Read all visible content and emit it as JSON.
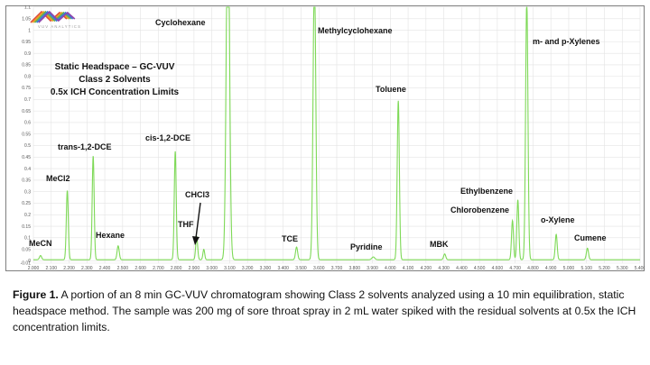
{
  "logo": {
    "text": "VUV ANALYTICS",
    "wave_colors": [
      "#e04a3a",
      "#f0a020",
      "#6ab04c",
      "#3a7bd5",
      "#8e44ad"
    ]
  },
  "chart_data": {
    "type": "line",
    "title_lines": [
      "Static Headspace – GC-VUV",
      "Class 2 Solvents",
      "0.5x ICH Concentration Limits"
    ],
    "xlabel": "",
    "ylabel": "",
    "xlim": [
      2.0,
      5.4
    ],
    "ylim": [
      -0.01,
      1.1
    ],
    "x_ticks": [
      "2.000",
      "2.100",
      "2.200",
      "2.300",
      "2.400",
      "2.500",
      "2.600",
      "2.700",
      "2.800",
      "2.900",
      "3.000",
      "3.100",
      "3.200",
      "3.300",
      "3.400",
      "3.500",
      "3.600",
      "3.700",
      "3.800",
      "3.900",
      "4.000",
      "4.100",
      "4.200",
      "4.300",
      "4.400",
      "4.500",
      "4.600",
      "4.700",
      "4.800",
      "4.900",
      "5.000",
      "5.100",
      "5.200",
      "5.300",
      "5.400"
    ],
    "y_ticks": [
      "-0.01",
      "0",
      "0.05",
      "0.1",
      "0.15",
      "0.2",
      "0.25",
      "0.3",
      "0.35",
      "0.4",
      "0.45",
      "0.5",
      "0.55",
      "0.6",
      "0.65",
      "0.7",
      "0.75",
      "0.8",
      "0.85",
      "0.9",
      "0.95",
      "1",
      "1.05",
      "1.1"
    ],
    "grid": true,
    "line_color": "#7ed957",
    "baseline": 0.005,
    "peaks": [
      {
        "name": "MeCN",
        "rt": 2.04,
        "height": 0.018,
        "width": 0.006
      },
      {
        "name": "MeCl2",
        "rt": 2.19,
        "height": 0.3,
        "width": 0.0055
      },
      {
        "name": "trans-1,2-DCE",
        "rt": 2.335,
        "height": 0.45,
        "width": 0.0055
      },
      {
        "name": "Hexane",
        "rt": 2.475,
        "height": 0.06,
        "width": 0.006
      },
      {
        "name": "cis-1,2-DCE",
        "rt": 2.795,
        "height": 0.47,
        "width": 0.0055
      },
      {
        "name": "THF",
        "rt": 2.915,
        "height": 0.1,
        "width": 0.0055
      },
      {
        "name": "CHCl3",
        "rt": 2.955,
        "height": 0.045,
        "width": 0.005
      },
      {
        "name": "Cyclohexane",
        "rt": 3.09,
        "height": 1.6,
        "width": 0.009
      },
      {
        "name": "TCE",
        "rt": 3.475,
        "height": 0.055,
        "width": 0.006
      },
      {
        "name": "Methylcyclohexane",
        "rt": 3.575,
        "height": 1.25,
        "width": 0.0075
      },
      {
        "name": "Pyridine",
        "rt": 3.905,
        "height": 0.012,
        "width": 0.008
      },
      {
        "name": "Toluene",
        "rt": 4.045,
        "height": 0.69,
        "width": 0.006
      },
      {
        "name": "MBK",
        "rt": 4.305,
        "height": 0.025,
        "width": 0.006
      },
      {
        "name": "Chlorobenzene",
        "rt": 4.685,
        "height": 0.17,
        "width": 0.0055
      },
      {
        "name": "Ethylbenzene",
        "rt": 4.715,
        "height": 0.26,
        "width": 0.0055
      },
      {
        "name": "m- and p-Xylenes",
        "rt": 4.765,
        "height": 1.13,
        "width": 0.0065
      },
      {
        "name": "o-Xylene",
        "rt": 4.93,
        "height": 0.11,
        "width": 0.0055
      },
      {
        "name": "Cumene",
        "rt": 5.105,
        "height": 0.05,
        "width": 0.006
      }
    ],
    "annotations": [
      "MeCN",
      "MeCl2",
      "trans-1,2-DCE",
      "Hexane",
      "cis-1,2-DCE",
      "THF",
      "CHCl3",
      "Cyclohexane",
      "TCE",
      "Methylcyclohexane",
      "Pyridine",
      "Toluene",
      "MBK",
      "Chlorobenzene",
      "Ethylbenzene",
      "m- and p-Xylenes",
      "o-Xylene",
      "Cumene"
    ]
  },
  "caption": {
    "figure_label": "Figure 1.",
    "text": " A portion of an 8 min GC-VUV chromatogram showing Class 2 solvents analyzed using a 10 min equilibration, static headspace method.  The sample was 200 mg of sore throat spray in 2 mL water spiked with the residual solvents at 0.5x the ICH concentration limits."
  }
}
